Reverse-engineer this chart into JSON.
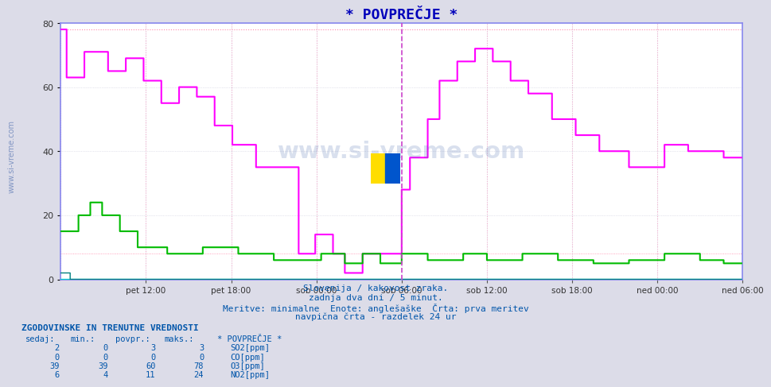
{
  "title": "* POVPREČJE *",
  "bg_color": "#dcdce8",
  "plot_bg": "#ffffff",
  "ylim": [
    0,
    80
  ],
  "yticks": [
    0,
    20,
    40,
    60,
    80
  ],
  "n_points": 576,
  "x_labels": [
    "pet 12:00",
    "pet 18:00",
    "sob 00:00",
    "sob 06:00",
    "sob 12:00",
    "sob 18:00",
    "ned 00:00",
    "ned 06:00"
  ],
  "x_tick_positions": [
    72,
    144,
    216,
    288,
    360,
    432,
    504,
    576
  ],
  "vert_line_x": 288,
  "subtitle1": "Slovenija / kakovost zraka.",
  "subtitle2": "zadnja dva dni / 5 minut.",
  "subtitle3": "Meritve: minimalne  Enote: anglešaške  Črta: prva meritev",
  "subtitle4": "navpična črta - razdelek 24 ur",
  "table_header": "ZGODOVINSKE IN TRENUTNE VREDNOSTI",
  "col_headers": [
    "sedaj:",
    "min.:",
    "povpr.:",
    "maks.:",
    "* POVPREČJE *"
  ],
  "row_data": [
    {
      "sedaj": 2,
      "min": 0,
      "povpr": 3,
      "maks": 3,
      "name": "SO2[ppm]",
      "color": "#008080"
    },
    {
      "sedaj": 0,
      "min": 0,
      "povpr": 0,
      "maks": 0,
      "name": "CO[ppm]",
      "color": "#00cccc"
    },
    {
      "sedaj": 39,
      "min": 39,
      "povpr": 60,
      "maks": 78,
      "name": "O3[ppm]",
      "color": "#ff00ff"
    },
    {
      "sedaj": 6,
      "min": 4,
      "povpr": 11,
      "maks": 24,
      "name": "NO2[ppm]",
      "color": "#00bb00"
    }
  ],
  "color_SO2": "#008080",
  "color_CO": "#00cccc",
  "color_O3": "#ff00ff",
  "color_NO2": "#00bb00",
  "color_title": "#0000bb",
  "color_subtitle": "#0055aa",
  "color_table": "#0055aa",
  "color_frame": "#8888ee",
  "color_vline_dashed": "#cc44cc",
  "color_vline_dotted": "#ffaacc",
  "color_hline": "#ff88aa",
  "color_watermark": "#4466aa",
  "color_grid": "#ccccdd",
  "watermark": "www.si-vreme.com"
}
